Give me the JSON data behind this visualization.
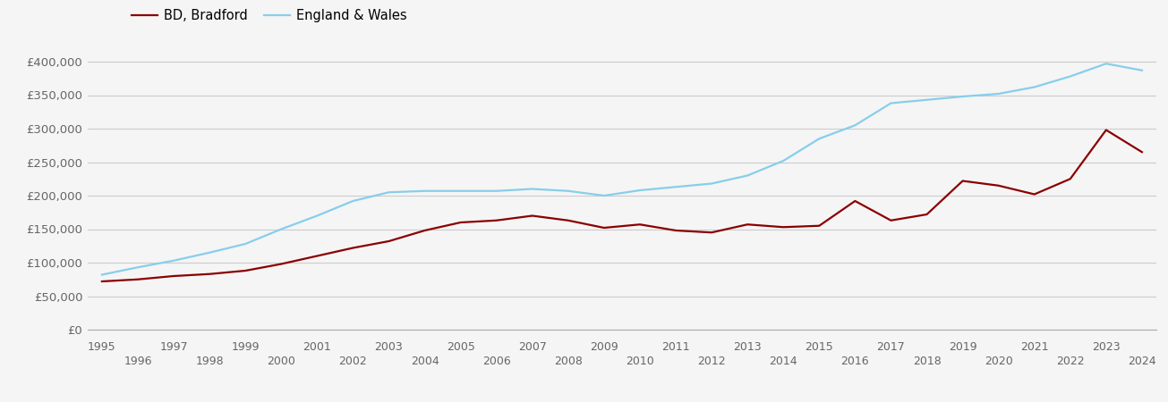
{
  "legend_labels": [
    "BD, Bradford",
    "England & Wales"
  ],
  "background_color": "#f5f5f5",
  "grid_color": "#cccccc",
  "years": [
    1995,
    1996,
    1997,
    1998,
    1999,
    2000,
    2001,
    2002,
    2003,
    2004,
    2005,
    2006,
    2007,
    2008,
    2009,
    2010,
    2011,
    2012,
    2013,
    2014,
    2015,
    2016,
    2017,
    2018,
    2019,
    2020,
    2021,
    2022,
    2023,
    2024
  ],
  "bradford": [
    72000,
    75000,
    80000,
    83000,
    88000,
    98000,
    110000,
    122000,
    132000,
    148000,
    160000,
    163000,
    170000,
    163000,
    152000,
    157000,
    148000,
    145000,
    157000,
    153000,
    155000,
    192000,
    163000,
    172000,
    222000,
    215000,
    202000,
    225000,
    298000,
    265000
  ],
  "england_wales": [
    82000,
    93000,
    103000,
    115000,
    128000,
    150000,
    170000,
    192000,
    205000,
    207000,
    207000,
    207000,
    210000,
    207000,
    200000,
    208000,
    213000,
    218000,
    230000,
    252000,
    285000,
    305000,
    338000,
    343000,
    348000,
    352000,
    362000,
    378000,
    397000,
    387000
  ],
  "ylim": [
    0,
    420000
  ],
  "yticks": [
    0,
    50000,
    100000,
    150000,
    200000,
    250000,
    300000,
    350000,
    400000
  ],
  "ytick_labels": [
    "£0",
    "£50,000",
    "£100,000",
    "£150,000",
    "£200,000",
    "£250,000",
    "£300,000",
    "£350,000",
    "£400,000"
  ],
  "xlabel_odd": [
    1995,
    1997,
    1999,
    2001,
    2003,
    2005,
    2007,
    2009,
    2011,
    2013,
    2015,
    2017,
    2019,
    2021,
    2023
  ],
  "xlabel_even": [
    1996,
    1998,
    2000,
    2002,
    2004,
    2006,
    2008,
    2010,
    2012,
    2014,
    2016,
    2018,
    2020,
    2022,
    2024
  ],
  "line_width": 1.6,
  "bd_color": "#8B0000",
  "ew_color": "#87CEEB",
  "tick_color": "#666666",
  "spine_color": "#aaaaaa"
}
